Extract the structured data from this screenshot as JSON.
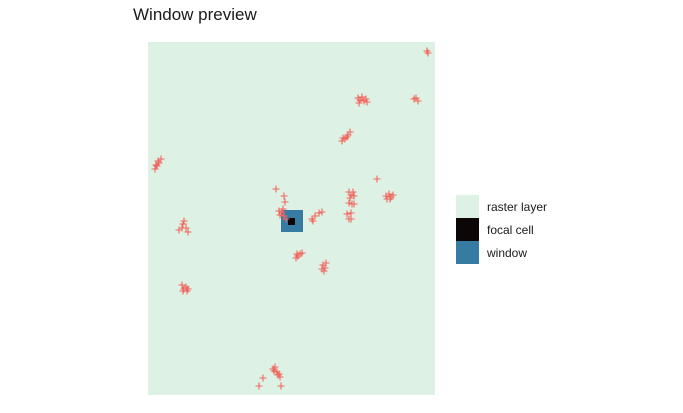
{
  "title": "Window preview",
  "colors": {
    "raster": "#DDF2E4",
    "focal": "#0D0606",
    "window": "#357BA2",
    "points": "#F0675F"
  },
  "legend": [
    {
      "label": "raster layer",
      "color": "#DDF2E4"
    },
    {
      "label": "focal cell",
      "color": "#0D0606"
    },
    {
      "label": "window",
      "color": "#357BA2"
    }
  ],
  "chart_data": {
    "type": "scatter",
    "title": "Window preview",
    "xlim": [
      0,
      287
    ],
    "ylim": [
      0,
      353
    ],
    "grid": false,
    "legend_position": "right",
    "raster": {
      "x": [
        0,
        287
      ],
      "y": [
        0,
        353
      ]
    },
    "window": {
      "x": [
        133,
        155
      ],
      "y": [
        163,
        185
      ]
    },
    "focal_cell": {
      "x": [
        140,
        147
      ],
      "y": [
        170,
        177
      ]
    },
    "points": [
      {
        "x": 279,
        "y": 344
      },
      {
        "x": 280,
        "y": 342
      },
      {
        "x": 210,
        "y": 297
      },
      {
        "x": 212,
        "y": 295
      },
      {
        "x": 214,
        "y": 298
      },
      {
        "x": 216,
        "y": 294
      },
      {
        "x": 218,
        "y": 296
      },
      {
        "x": 211,
        "y": 292
      },
      {
        "x": 219,
        "y": 293
      },
      {
        "x": 266,
        "y": 296
      },
      {
        "x": 270,
        "y": 294
      },
      {
        "x": 268,
        "y": 297
      },
      {
        "x": 194,
        "y": 254
      },
      {
        "x": 197,
        "y": 256
      },
      {
        "x": 200,
        "y": 260
      },
      {
        "x": 202,
        "y": 263
      },
      {
        "x": 199,
        "y": 258
      },
      {
        "x": 195,
        "y": 257
      },
      {
        "x": 7,
        "y": 226
      },
      {
        "x": 9,
        "y": 229
      },
      {
        "x": 11,
        "y": 232
      },
      {
        "x": 13,
        "y": 236
      },
      {
        "x": 8,
        "y": 230
      },
      {
        "x": 10,
        "y": 234
      },
      {
        "x": 229,
        "y": 216
      },
      {
        "x": 128,
        "y": 206
      },
      {
        "x": 136,
        "y": 199
      },
      {
        "x": 137,
        "y": 193
      },
      {
        "x": 201,
        "y": 203
      },
      {
        "x": 203,
        "y": 200
      },
      {
        "x": 205,
        "y": 203
      },
      {
        "x": 202,
        "y": 197
      },
      {
        "x": 206,
        "y": 199
      },
      {
        "x": 204,
        "y": 191
      },
      {
        "x": 201,
        "y": 192
      },
      {
        "x": 206,
        "y": 191
      },
      {
        "x": 238,
        "y": 199
      },
      {
        "x": 241,
        "y": 201
      },
      {
        "x": 243,
        "y": 198
      },
      {
        "x": 245,
        "y": 200
      },
      {
        "x": 239,
        "y": 196
      },
      {
        "x": 242,
        "y": 196
      },
      {
        "x": 199,
        "y": 181
      },
      {
        "x": 203,
        "y": 182
      },
      {
        "x": 201,
        "y": 176
      },
      {
        "x": 203,
        "y": 176
      },
      {
        "x": 132,
        "y": 180
      },
      {
        "x": 134,
        "y": 183
      },
      {
        "x": 136,
        "y": 179
      },
      {
        "x": 135,
        "y": 186
      },
      {
        "x": 131,
        "y": 184
      },
      {
        "x": 138,
        "y": 176
      },
      {
        "x": 164,
        "y": 176
      },
      {
        "x": 167,
        "y": 179
      },
      {
        "x": 171,
        "y": 182
      },
      {
        "x": 174,
        "y": 183
      },
      {
        "x": 165,
        "y": 174
      },
      {
        "x": 36,
        "y": 174
      },
      {
        "x": 35,
        "y": 171
      },
      {
        "x": 34,
        "y": 167
      },
      {
        "x": 38,
        "y": 167
      },
      {
        "x": 31,
        "y": 165
      },
      {
        "x": 40,
        "y": 163
      },
      {
        "x": 148,
        "y": 137
      },
      {
        "x": 150,
        "y": 139
      },
      {
        "x": 152,
        "y": 141
      },
      {
        "x": 154,
        "y": 142
      },
      {
        "x": 149,
        "y": 141
      },
      {
        "x": 175,
        "y": 130
      },
      {
        "x": 177,
        "y": 127
      },
      {
        "x": 176,
        "y": 124
      },
      {
        "x": 174,
        "y": 126
      },
      {
        "x": 178,
        "y": 132
      },
      {
        "x": 34,
        "y": 110
      },
      {
        "x": 36,
        "y": 106
      },
      {
        "x": 38,
        "y": 108
      },
      {
        "x": 40,
        "y": 106
      },
      {
        "x": 35,
        "y": 104
      },
      {
        "x": 39,
        "y": 104
      },
      {
        "x": 125,
        "y": 26
      },
      {
        "x": 127,
        "y": 28
      },
      {
        "x": 126,
        "y": 24
      },
      {
        "x": 130,
        "y": 20
      },
      {
        "x": 131,
        "y": 21
      },
      {
        "x": 132,
        "y": 18
      },
      {
        "x": 129,
        "y": 23
      },
      {
        "x": 115,
        "y": 17
      },
      {
        "x": 133,
        "y": 9
      },
      {
        "x": 111,
        "y": 9
      }
    ]
  }
}
